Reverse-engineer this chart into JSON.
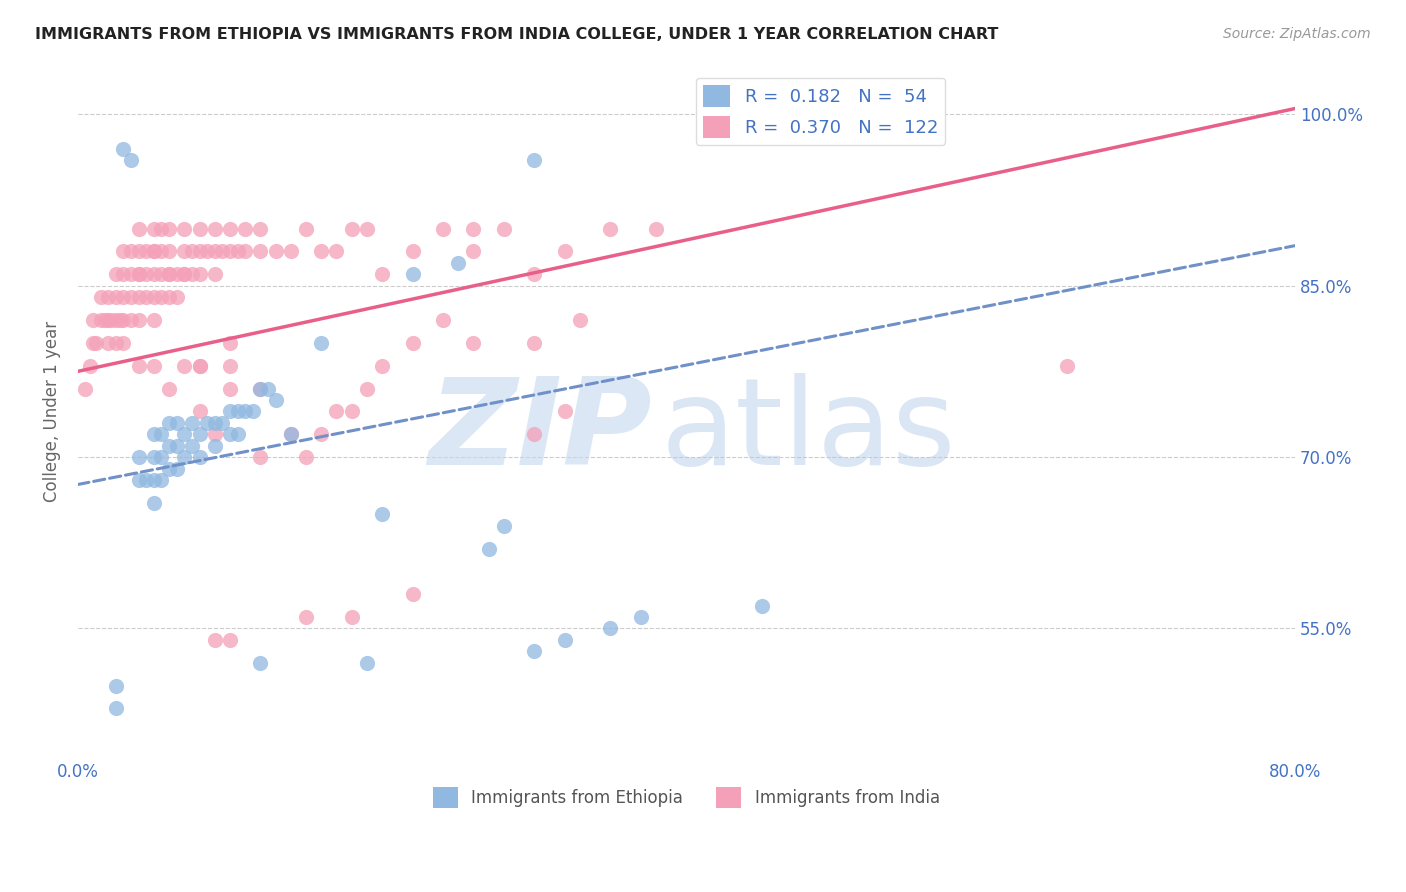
{
  "title": "IMMIGRANTS FROM ETHIOPIA VS IMMIGRANTS FROM INDIA COLLEGE, UNDER 1 YEAR CORRELATION CHART",
  "source": "Source: ZipAtlas.com",
  "ylabel_label": "College, Under 1 year",
  "right_yticks": [
    0.55,
    0.7,
    0.85,
    1.0
  ],
  "right_ytick_labels": [
    "55.0%",
    "70.0%",
    "85.0%",
    "100.0%"
  ],
  "xlim": [
    0.0,
    0.8
  ],
  "ylim": [
    0.44,
    1.04
  ],
  "legend_r_ethiopia": "0.182",
  "legend_n_ethiopia": "54",
  "legend_r_india": "0.370",
  "legend_n_india": "122",
  "color_ethiopia": "#90b8e0",
  "color_india": "#f4a0b8",
  "color_line_ethiopia": "#7090c8",
  "color_line_india": "#e8608a",
  "color_text_blue": "#4472c4",
  "eth_line": [
    0.676,
    0.885
  ],
  "ind_line": [
    0.775,
    1.005
  ],
  "ethiopia_scatter_x": [
    0.025,
    0.025,
    0.03,
    0.035,
    0.04,
    0.04,
    0.045,
    0.05,
    0.05,
    0.05,
    0.05,
    0.055,
    0.055,
    0.055,
    0.06,
    0.06,
    0.06,
    0.065,
    0.065,
    0.065,
    0.07,
    0.07,
    0.075,
    0.075,
    0.08,
    0.08,
    0.085,
    0.09,
    0.09,
    0.095,
    0.1,
    0.1,
    0.105,
    0.105,
    0.11,
    0.115,
    0.12,
    0.125,
    0.13,
    0.14,
    0.16,
    0.2,
    0.22,
    0.25,
    0.28,
    0.3,
    0.32,
    0.35,
    0.37,
    0.45,
    0.12,
    0.19,
    0.27,
    0.3
  ],
  "ethiopia_scatter_y": [
    0.48,
    0.5,
    0.97,
    0.96,
    0.68,
    0.7,
    0.68,
    0.7,
    0.72,
    0.68,
    0.66,
    0.68,
    0.7,
    0.72,
    0.69,
    0.71,
    0.73,
    0.69,
    0.71,
    0.73,
    0.7,
    0.72,
    0.71,
    0.73,
    0.7,
    0.72,
    0.73,
    0.71,
    0.73,
    0.73,
    0.72,
    0.74,
    0.72,
    0.74,
    0.74,
    0.74,
    0.76,
    0.76,
    0.75,
    0.72,
    0.8,
    0.65,
    0.86,
    0.87,
    0.64,
    0.53,
    0.54,
    0.55,
    0.56,
    0.57,
    0.52,
    0.52,
    0.62,
    0.96
  ],
  "india_scatter_x": [
    0.005,
    0.008,
    0.01,
    0.01,
    0.012,
    0.015,
    0.015,
    0.018,
    0.02,
    0.02,
    0.02,
    0.022,
    0.025,
    0.025,
    0.025,
    0.025,
    0.028,
    0.03,
    0.03,
    0.03,
    0.03,
    0.03,
    0.035,
    0.035,
    0.035,
    0.035,
    0.04,
    0.04,
    0.04,
    0.04,
    0.04,
    0.04,
    0.045,
    0.045,
    0.045,
    0.05,
    0.05,
    0.05,
    0.05,
    0.05,
    0.05,
    0.055,
    0.055,
    0.055,
    0.055,
    0.06,
    0.06,
    0.06,
    0.06,
    0.065,
    0.065,
    0.07,
    0.07,
    0.07,
    0.07,
    0.075,
    0.075,
    0.08,
    0.08,
    0.08,
    0.08,
    0.085,
    0.09,
    0.09,
    0.09,
    0.095,
    0.1,
    0.1,
    0.1,
    0.105,
    0.11,
    0.11,
    0.12,
    0.12,
    0.13,
    0.14,
    0.15,
    0.16,
    0.17,
    0.18,
    0.19,
    0.2,
    0.22,
    0.24,
    0.26,
    0.26,
    0.28,
    0.3,
    0.32,
    0.35,
    0.38,
    0.65,
    0.17,
    0.19,
    0.3,
    0.32,
    0.14,
    0.15,
    0.08,
    0.09,
    0.1,
    0.07,
    0.06,
    0.05,
    0.04,
    0.06,
    0.08,
    0.1,
    0.12,
    0.12,
    0.16,
    0.18,
    0.2,
    0.22,
    0.24,
    0.26,
    0.3,
    0.33,
    0.22,
    0.18,
    0.15,
    0.1,
    0.09
  ],
  "india_scatter_y": [
    0.76,
    0.78,
    0.8,
    0.82,
    0.8,
    0.82,
    0.84,
    0.82,
    0.8,
    0.82,
    0.84,
    0.82,
    0.8,
    0.82,
    0.84,
    0.86,
    0.82,
    0.8,
    0.82,
    0.84,
    0.86,
    0.88,
    0.82,
    0.84,
    0.86,
    0.88,
    0.82,
    0.84,
    0.86,
    0.88,
    0.9,
    0.78,
    0.84,
    0.86,
    0.88,
    0.82,
    0.84,
    0.86,
    0.88,
    0.9,
    0.78,
    0.84,
    0.86,
    0.88,
    0.9,
    0.84,
    0.86,
    0.88,
    0.9,
    0.84,
    0.86,
    0.86,
    0.88,
    0.9,
    0.78,
    0.86,
    0.88,
    0.86,
    0.88,
    0.9,
    0.78,
    0.88,
    0.86,
    0.88,
    0.9,
    0.88,
    0.88,
    0.9,
    0.8,
    0.88,
    0.88,
    0.9,
    0.88,
    0.9,
    0.88,
    0.88,
    0.9,
    0.88,
    0.88,
    0.9,
    0.9,
    0.86,
    0.88,
    0.9,
    0.9,
    0.88,
    0.9,
    0.86,
    0.88,
    0.9,
    0.9,
    0.78,
    0.74,
    0.76,
    0.72,
    0.74,
    0.72,
    0.7,
    0.74,
    0.72,
    0.76,
    0.86,
    0.86,
    0.88,
    0.86,
    0.76,
    0.78,
    0.78,
    0.76,
    0.7,
    0.72,
    0.74,
    0.78,
    0.8,
    0.82,
    0.8,
    0.8,
    0.82,
    0.58,
    0.56,
    0.56,
    0.54,
    0.54
  ]
}
